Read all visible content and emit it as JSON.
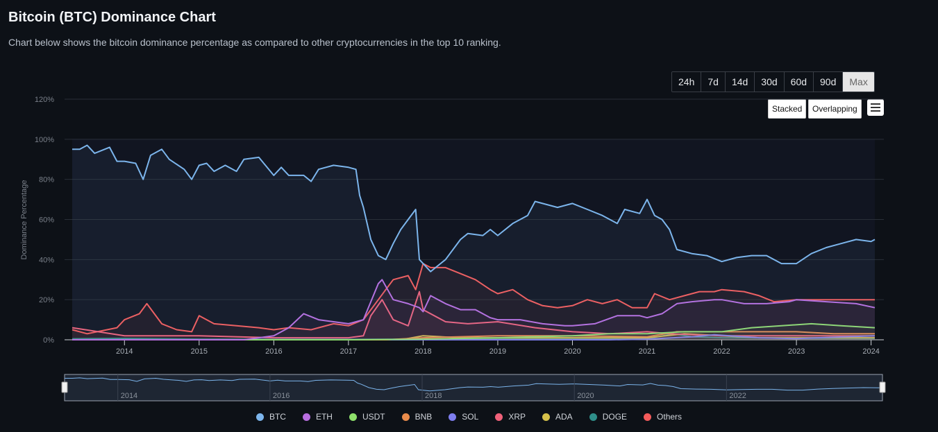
{
  "page": {
    "title": "Bitcoin (BTC) Dominance Chart",
    "subtitle": "Chart below shows the bitcoin dominance percentage as compared to other cryptocurrencies in the top 10 ranking."
  },
  "controls": {
    "ranges": [
      "24h",
      "7d",
      "14d",
      "30d",
      "60d",
      "90d",
      "Max"
    ],
    "active_range": "Max",
    "stacked_label": "Stacked",
    "overlapping_label": "Overlapping",
    "menu_icon": "hamburger-icon"
  },
  "navigator": {
    "tick_labels": [
      "2014",
      "2016",
      "2018",
      "2020",
      "2022"
    ]
  },
  "chart_data": {
    "type": "line",
    "ylabel": "Dominance Percentage",
    "xlabel": "",
    "ylim": [
      0,
      120
    ],
    "y_ticks": [
      "0%",
      "20%",
      "40%",
      "60%",
      "80%",
      "100%",
      "120%"
    ],
    "x_ticks": [
      "2014",
      "2015",
      "2016",
      "2017",
      "2018",
      "2019",
      "2020",
      "2021",
      "2022",
      "2023",
      "2024"
    ],
    "xlim": [
      2013.3,
      2024.05
    ],
    "grid": true,
    "legend_position": "bottom",
    "series": [
      {
        "name": "BTC",
        "color": "#7cb5ec",
        "x": [
          2013.3,
          2013.4,
          2013.5,
          2013.6,
          2013.8,
          2013.9,
          2014.0,
          2014.15,
          2014.25,
          2014.35,
          2014.5,
          2014.6,
          2014.8,
          2014.9,
          2015.0,
          2015.1,
          2015.2,
          2015.35,
          2015.5,
          2015.6,
          2015.8,
          2016.0,
          2016.1,
          2016.2,
          2016.4,
          2016.5,
          2016.6,
          2016.8,
          2017.0,
          2017.1,
          2017.15,
          2017.2,
          2017.3,
          2017.4,
          2017.5,
          2017.6,
          2017.7,
          2017.8,
          2017.9,
          2017.95,
          2018.0,
          2018.1,
          2018.2,
          2018.3,
          2018.5,
          2018.6,
          2018.8,
          2018.9,
          2019.0,
          2019.2,
          2019.4,
          2019.5,
          2019.6,
          2019.8,
          2020.0,
          2020.2,
          2020.4,
          2020.6,
          2020.7,
          2020.9,
          2021.0,
          2021.1,
          2021.2,
          2021.3,
          2021.4,
          2021.6,
          2021.8,
          2022.0,
          2022.2,
          2022.4,
          2022.6,
          2022.8,
          2023.0,
          2023.2,
          2023.4,
          2023.6,
          2023.8,
          2024.0,
          2024.05
        ],
        "values": [
          95,
          95,
          97,
          93,
          96,
          89,
          89,
          88,
          80,
          92,
          95,
          90,
          85,
          80,
          87,
          88,
          84,
          87,
          84,
          90,
          91,
          82,
          86,
          82,
          82,
          79,
          85,
          87,
          86,
          85,
          72,
          66,
          50,
          42,
          40,
          48,
          55,
          60,
          65,
          40,
          38,
          34,
          37,
          40,
          50,
          53,
          52,
          55,
          52,
          58,
          62,
          69,
          68,
          66,
          68,
          65,
          62,
          58,
          65,
          63,
          70,
          62,
          60,
          55,
          45,
          43,
          42,
          39,
          41,
          42,
          42,
          38,
          38,
          43,
          46,
          48,
          50,
          49,
          50
        ]
      },
      {
        "name": "ETH",
        "color": "#b86ee0",
        "x": [
          2013.3,
          2015.6,
          2016.0,
          2016.2,
          2016.4,
          2016.6,
          2017.0,
          2017.2,
          2017.4,
          2017.45,
          2017.6,
          2017.8,
          2017.95,
          2018.0,
          2018.1,
          2018.3,
          2018.5,
          2018.7,
          2018.9,
          2019.0,
          2019.3,
          2019.6,
          2019.9,
          2020.0,
          2020.3,
          2020.6,
          2020.9,
          2021.0,
          2021.2,
          2021.4,
          2021.6,
          2021.9,
          2022.0,
          2022.3,
          2022.6,
          2022.9,
          2023.0,
          2023.4,
          2023.8,
          2024.05
        ],
        "values": [
          0,
          0,
          2,
          6,
          13,
          10,
          8,
          10,
          28,
          30,
          20,
          18,
          16,
          14,
          22,
          18,
          15,
          15,
          11,
          10,
          10,
          8,
          7,
          7,
          8,
          12,
          12,
          11,
          13,
          18,
          19,
          20,
          20,
          18,
          18,
          19,
          20,
          19,
          18,
          16
        ]
      },
      {
        "name": "USDT",
        "color": "#8ee06b",
        "x": [
          2013.3,
          2017.0,
          2018.0,
          2019.0,
          2020.0,
          2020.5,
          2021.0,
          2021.5,
          2022.0,
          2022.4,
          2022.8,
          2023.2,
          2023.6,
          2024.05
        ],
        "values": [
          0,
          0,
          0.3,
          1,
          2,
          3,
          3,
          4,
          4,
          6,
          7,
          8,
          7,
          6
        ]
      },
      {
        "name": "BNB",
        "color": "#e98b4b",
        "x": [
          2013.3,
          2017.5,
          2018.0,
          2019.0,
          2020.0,
          2021.0,
          2021.4,
          2022.0,
          2022.5,
          2023.0,
          2023.5,
          2024.05
        ],
        "values": [
          0,
          0,
          1,
          2,
          2,
          1.5,
          4,
          4,
          4,
          4,
          3,
          3
        ]
      },
      {
        "name": "SOL",
        "color": "#7e7ef0",
        "x": [
          2013.3,
          2020.5,
          2021.0,
          2021.6,
          2021.9,
          2022.5,
          2023.0,
          2023.9,
          2024.05
        ],
        "values": [
          0,
          0,
          0.3,
          1.5,
          2.5,
          1,
          0.6,
          1.8,
          2
        ]
      },
      {
        "name": "XRP",
        "color": "#f0617a",
        "x": [
          2013.3,
          2014.0,
          2015.0,
          2016.0,
          2016.5,
          2017.0,
          2017.2,
          2017.3,
          2017.45,
          2017.6,
          2017.8,
          2017.95,
          2018.0,
          2018.3,
          2018.6,
          2019.0,
          2019.5,
          2020.0,
          2020.5,
          2021.0,
          2021.3,
          2022.0,
          2022.5,
          2023.0,
          2023.5,
          2024.05
        ],
        "values": [
          6,
          2,
          2,
          1,
          1,
          1,
          2,
          12,
          20,
          10,
          7,
          24,
          15,
          9,
          8,
          9,
          6,
          4,
          3,
          4,
          3,
          2,
          2,
          2,
          2,
          2
        ]
      },
      {
        "name": "ADA",
        "color": "#d6c14a",
        "x": [
          2013.3,
          2017.7,
          2018.0,
          2018.5,
          2019.0,
          2020.0,
          2020.5,
          2021.0,
          2021.5,
          2022.0,
          2022.5,
          2023.0,
          2024.05
        ],
        "values": [
          0,
          0,
          2,
          1,
          1,
          1,
          1,
          1,
          3,
          2,
          1,
          1,
          1
        ]
      },
      {
        "name": "DOGE",
        "color": "#2f8f8a",
        "x": [
          2013.3,
          2014.0,
          2015.0,
          2016.0,
          2017.0,
          2018.0,
          2019.0,
          2020.0,
          2021.0,
          2021.35,
          2021.6,
          2022.0,
          2023.0,
          2024.05
        ],
        "values": [
          0.5,
          0.7,
          0.3,
          0.2,
          0.2,
          0.3,
          0.5,
          0.5,
          0.5,
          3,
          1.5,
          1,
          0.8,
          0.7
        ]
      },
      {
        "name": "Others",
        "color": "#f45b5b",
        "x": [
          2013.3,
          2013.5,
          2013.9,
          2014.0,
          2014.2,
          2014.3,
          2014.5,
          2014.7,
          2014.9,
          2015.0,
          2015.2,
          2015.5,
          2015.8,
          2016.0,
          2016.2,
          2016.5,
          2016.8,
          2017.0,
          2017.2,
          2017.4,
          2017.5,
          2017.6,
          2017.8,
          2017.9,
          2018.0,
          2018.1,
          2018.3,
          2018.5,
          2018.7,
          2018.9,
          2019.0,
          2019.2,
          2019.4,
          2019.6,
          2019.8,
          2020.0,
          2020.2,
          2020.4,
          2020.6,
          2020.8,
          2021.0,
          2021.1,
          2021.3,
          2021.5,
          2021.7,
          2021.9,
          2022.0,
          2022.3,
          2022.5,
          2022.7,
          2023.0,
          2023.3,
          2023.6,
          2023.9,
          2024.05
        ],
        "values": [
          5,
          3,
          6,
          10,
          13,
          18,
          8,
          5,
          4,
          12,
          8,
          7,
          6,
          5,
          6,
          5,
          8,
          7,
          10,
          20,
          25,
          30,
          32,
          25,
          38,
          36,
          36,
          33,
          30,
          25,
          23,
          25,
          20,
          17,
          16,
          17,
          20,
          18,
          20,
          16,
          16,
          23,
          20,
          22,
          24,
          24,
          25,
          24,
          22,
          19,
          20,
          20,
          20,
          20,
          20
        ]
      }
    ]
  }
}
